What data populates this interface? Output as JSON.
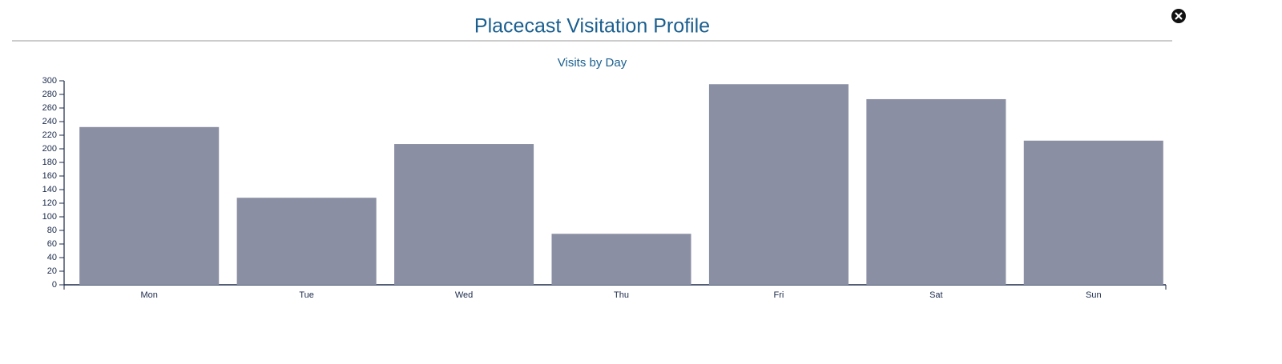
{
  "chart_data": {
    "type": "bar",
    "title": "Placecast Visitation Profile",
    "subtitle": "Visits by Day",
    "categories": [
      "Mon",
      "Tue",
      "Wed",
      "Thu",
      "Fri",
      "Sat",
      "Sun"
    ],
    "values": [
      232,
      128,
      207,
      75,
      295,
      273,
      212
    ],
    "color": "#8a8fa3",
    "ylim": [
      0,
      300
    ],
    "yticks": [
      0,
      20,
      40,
      60,
      80,
      100,
      120,
      140,
      160,
      180,
      200,
      220,
      240,
      260,
      280,
      300
    ]
  }
}
